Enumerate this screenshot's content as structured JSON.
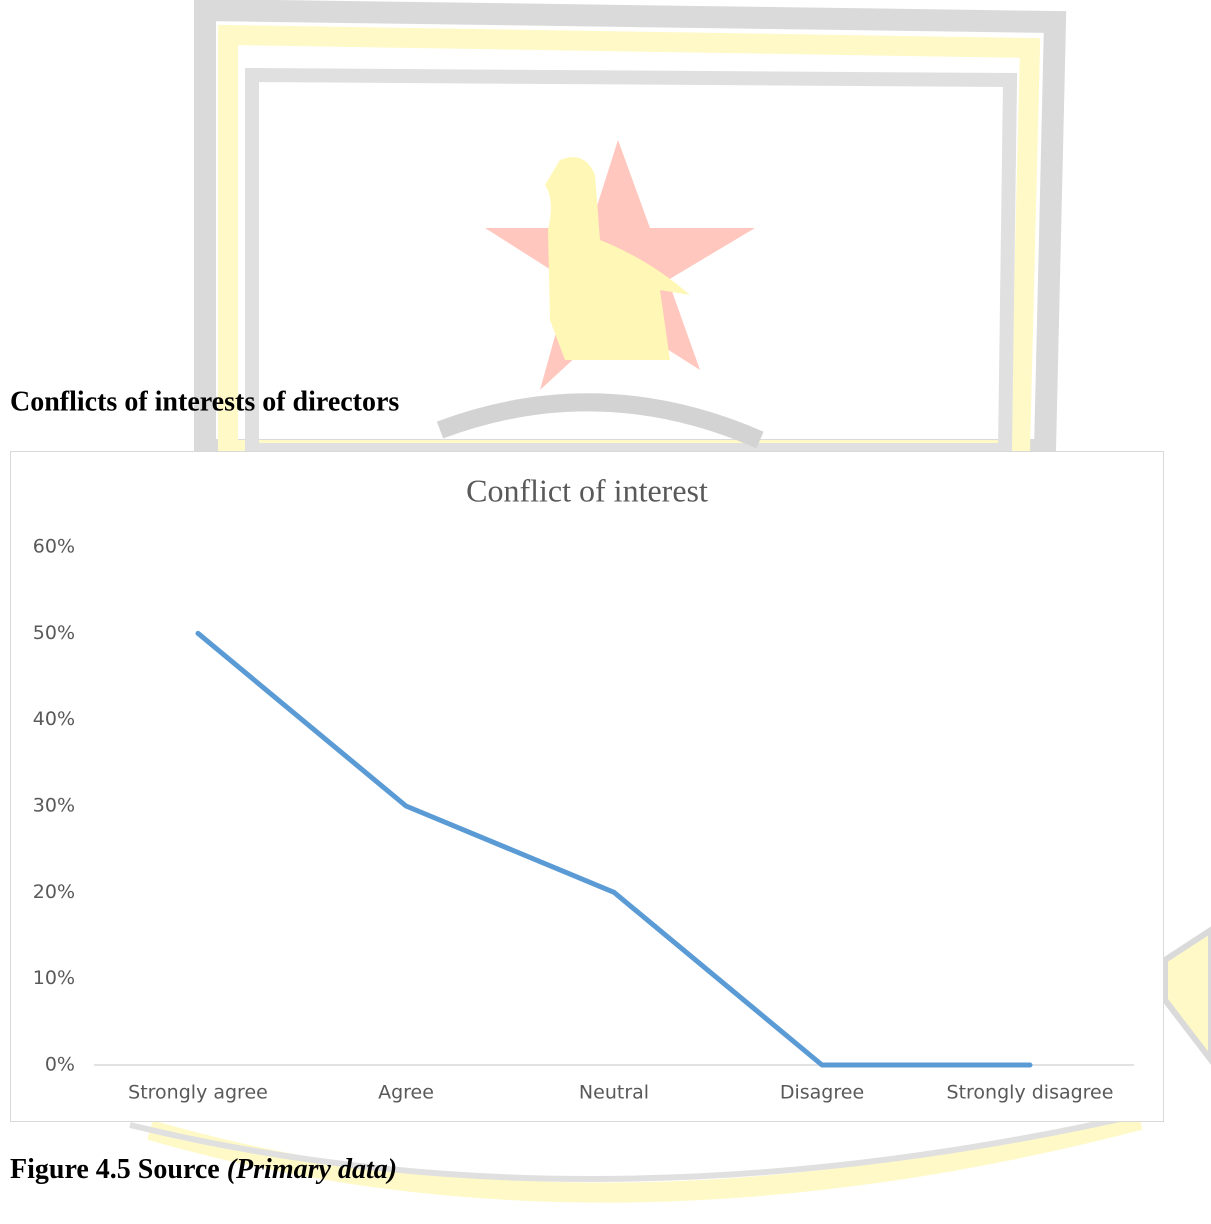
{
  "heading": "Conflicts of interests of directors",
  "chart_data": {
    "type": "line",
    "title": "Conflict of interest",
    "categories": [
      "Strongly agree",
      "Agree",
      "Neutral",
      "Disagree",
      "Strongly disagree"
    ],
    "series": [
      {
        "name": "Conflict of interest",
        "color": "#5b9bd5",
        "values": [
          50,
          30,
          20,
          0,
          0
        ]
      }
    ],
    "ylim": [
      0,
      60
    ],
    "yticks": [
      {
        "value": 0,
        "label": "0%"
      },
      {
        "value": 10,
        "label": "10%"
      },
      {
        "value": 20,
        "label": "20%"
      },
      {
        "value": 30,
        "label": "30%"
      },
      {
        "value": 40,
        "label": "40%"
      },
      {
        "value": 50,
        "label": "50%"
      },
      {
        "value": 60,
        "label": "60%"
      }
    ],
    "grid": false
  },
  "caption": {
    "label": "Figure 4.5 Source",
    "source": "(Primary data)"
  }
}
